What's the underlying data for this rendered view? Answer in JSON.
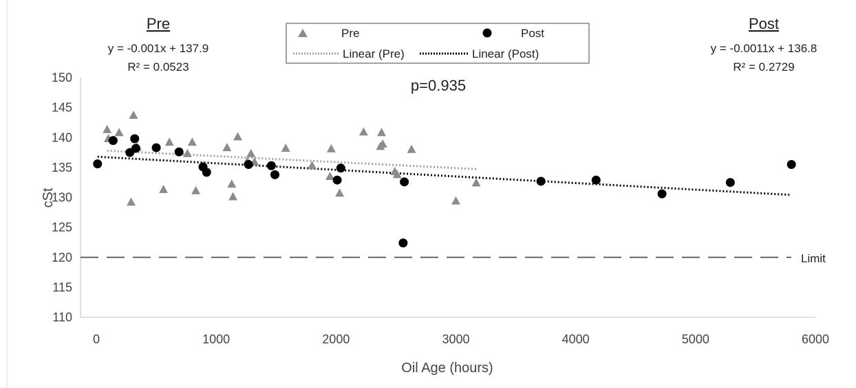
{
  "chart_data": {
    "type": "scatter",
    "xlabel": "Oil Age (hours)",
    "ylabel": "cSt",
    "xlim": [
      0,
      6000
    ],
    "ylim": [
      110,
      150
    ],
    "x_ticks": [
      "0",
      "1000",
      "2000",
      "3000",
      "4000",
      "5000",
      "6000"
    ],
    "y_ticks": [
      "110",
      "115",
      "120",
      "125",
      "130",
      "135",
      "140",
      "145",
      "150"
    ],
    "grid": false,
    "legend_position": "top-center",
    "series": [
      {
        "name": "Pre",
        "marker": "triangle",
        "color": "#8c8c8c",
        "points": [
          [
            90,
            141.3
          ],
          [
            100,
            139.8
          ],
          [
            190,
            140.8
          ],
          [
            290,
            129.2
          ],
          [
            310,
            143.7
          ],
          [
            340,
            138.4
          ],
          [
            560,
            131.3
          ],
          [
            610,
            139.2
          ],
          [
            760,
            137.3
          ],
          [
            800,
            139.2
          ],
          [
            830,
            131.1
          ],
          [
            1090,
            138.3
          ],
          [
            1130,
            132.2
          ],
          [
            1140,
            130.1
          ],
          [
            1180,
            140.1
          ],
          [
            1260,
            136.0
          ],
          [
            1290,
            137.3
          ],
          [
            1320,
            135.9
          ],
          [
            1580,
            138.2
          ],
          [
            1800,
            135.3
          ],
          [
            1950,
            133.5
          ],
          [
            1960,
            138.1
          ],
          [
            2030,
            130.7
          ],
          [
            2230,
            140.9
          ],
          [
            2370,
            138.5
          ],
          [
            2380,
            140.8
          ],
          [
            2390,
            138.9
          ],
          [
            2490,
            134.3
          ],
          [
            2510,
            133.8
          ],
          [
            2630,
            138.0
          ],
          [
            3000,
            129.4
          ],
          [
            3170,
            132.4
          ]
        ]
      },
      {
        "name": "Post",
        "marker": "circle",
        "color": "#000000",
        "points": [
          [
            10,
            135.6
          ],
          [
            140,
            139.5
          ],
          [
            280,
            137.5
          ],
          [
            320,
            139.8
          ],
          [
            330,
            138.2
          ],
          [
            500,
            138.3
          ],
          [
            690,
            137.6
          ],
          [
            890,
            135.1
          ],
          [
            920,
            134.2
          ],
          [
            1270,
            135.5
          ],
          [
            1460,
            135.3
          ],
          [
            1490,
            133.8
          ],
          [
            2010,
            132.9
          ],
          [
            2040,
            134.9
          ],
          [
            2560,
            122.4
          ],
          [
            2570,
            132.6
          ],
          [
            3710,
            132.7
          ],
          [
            4170,
            132.9
          ],
          [
            4720,
            130.6
          ],
          [
            5290,
            132.5
          ],
          [
            5800,
            135.5
          ]
        ]
      }
    ],
    "trendlines": [
      {
        "name": "Linear (Pre)",
        "slope": -0.001,
        "intercept": 137.9,
        "x_range": [
          90,
          3170
        ],
        "color": "#a0a0a0"
      },
      {
        "name": "Linear (Post)",
        "slope": -0.0011,
        "intercept": 136.8,
        "x_range": [
          10,
          5800
        ],
        "color": "#000000"
      }
    ],
    "reference_line": {
      "label": "Limit",
      "y": 120,
      "color": "#666666"
    },
    "annotations": {
      "pre_heading": "Pre",
      "pre_equation": "y = -0.001x + 137.9",
      "pre_r2": "R² = 0.0523",
      "post_heading": "Post",
      "post_equation": "y = -0.0011x + 136.8",
      "post_r2": "R² = 0.2729",
      "p_value": "p=0.935"
    },
    "legend": {
      "pre": "Pre",
      "post": "Post",
      "linear_pre": "Linear (Pre)",
      "linear_post": "Linear (Post)"
    }
  }
}
